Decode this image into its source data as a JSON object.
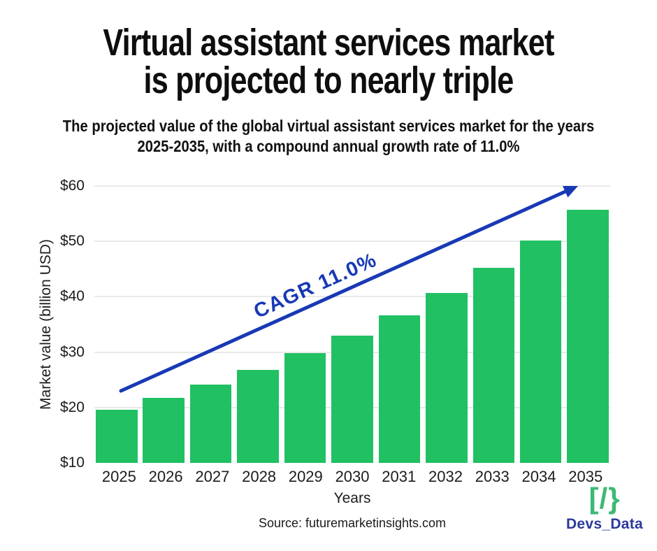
{
  "title": {
    "line1": "Virtual assistant services market",
    "line2": "is projected to nearly triple"
  },
  "subtitle": {
    "line1": "The projected value of the global virtual assistant services market for the years",
    "line2": "2025-2035, with a compound annual growth rate of 11.0%"
  },
  "chart_data": {
    "type": "bar",
    "categories": [
      "2025",
      "2026",
      "2027",
      "2028",
      "2029",
      "2030",
      "2031",
      "2032",
      "2033",
      "2034",
      "2035"
    ],
    "values": [
      19.6,
      21.8,
      24.1,
      26.8,
      29.8,
      33.0,
      36.7,
      40.7,
      45.2,
      50.1,
      55.7
    ],
    "title": "",
    "xlabel": "Years",
    "ylabel": "Market value (billion USD)",
    "ylim": [
      10,
      60
    ],
    "yticks": [
      {
        "value": 10,
        "label": "$10"
      },
      {
        "value": 20,
        "label": "$20"
      },
      {
        "value": 30,
        "label": "$30"
      },
      {
        "value": 40,
        "label": "$40"
      },
      {
        "value": 50,
        "label": "$50"
      },
      {
        "value": 60,
        "label": "$60"
      }
    ],
    "grid": "horizontal-major-only",
    "legend": "none",
    "annotation": {
      "text": "CAGR 11.0%",
      "type": "diagonal-trend-arrow",
      "from_year": "2025",
      "to_year": "2035"
    }
  },
  "footer": {
    "source": "Source: futuremarketinsights.com"
  },
  "brand": {
    "logo_glyph": "[/}",
    "name": "Devs_Data"
  },
  "colors": {
    "bar_green": "#21C063",
    "arrow_blue": "#1839B5",
    "logo_green": "#3CBA74",
    "brand_blue": "#2B3A9B",
    "grid_gray": "#E9E9E9",
    "text_dark": "#111111"
  }
}
